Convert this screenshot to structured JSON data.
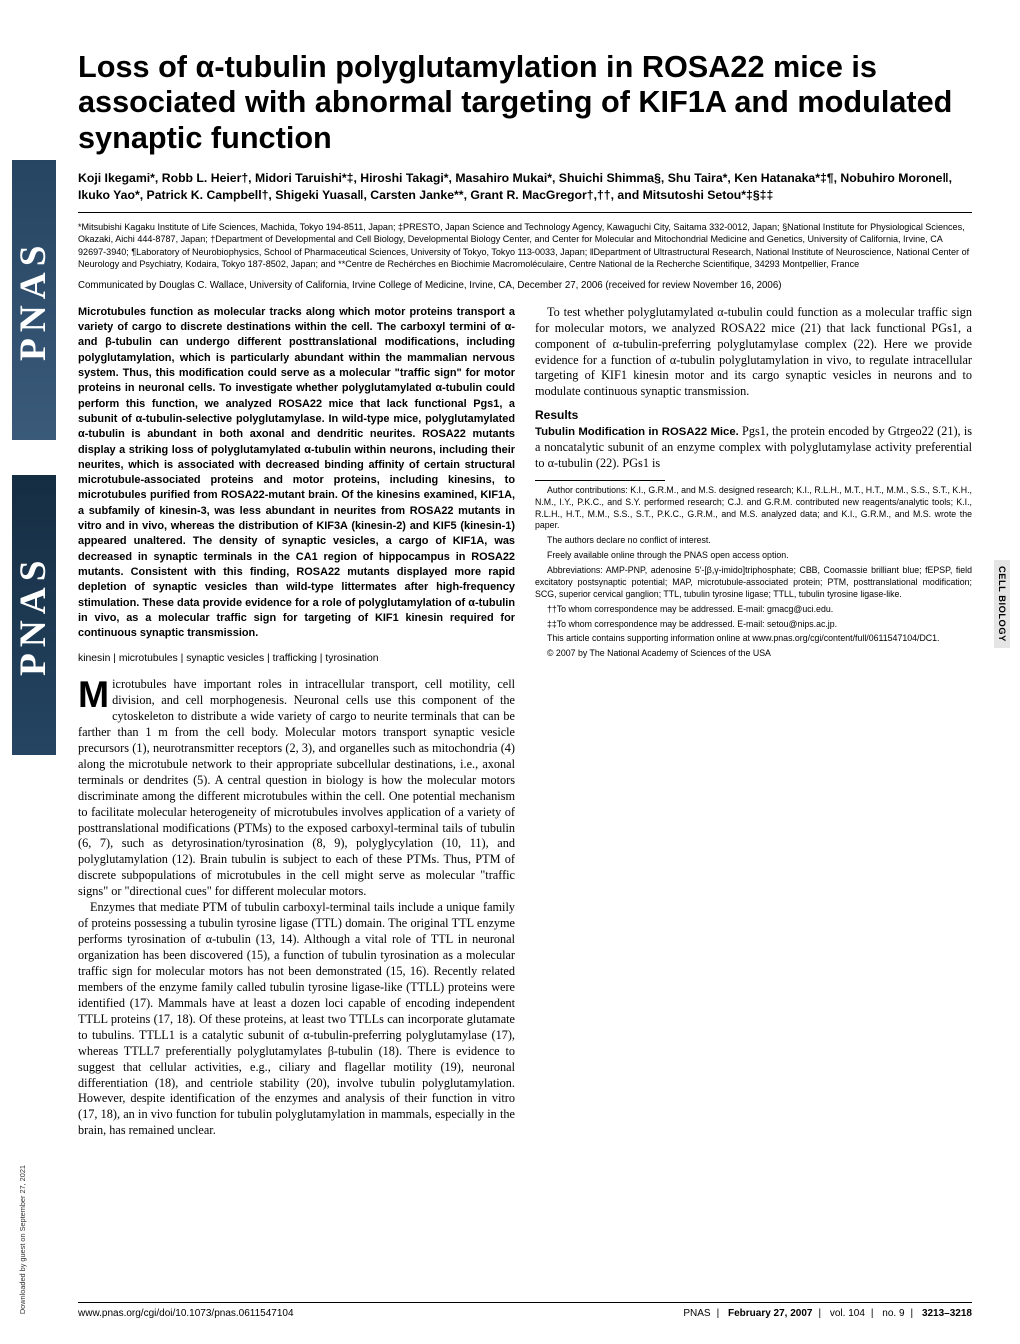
{
  "brand": {
    "text": "PNAS"
  },
  "side_category": "CELL BIOLOGY",
  "download_note": "Downloaded by guest on September 27, 2021",
  "title": "Loss of α-tubulin polyglutamylation in ROSA22 mice is associated with abnormal targeting of KIF1A and modulated synaptic function",
  "authors": "Koji Ikegami*, Robb L. Heier†, Midori Taruishi*‡, Hiroshi Takagi*, Masahiro Mukai*, Shuichi Shimma§, Shu Taira*, Ken Hatanaka*‡¶, Nobuhiro Morone‖, Ikuko Yao*, Patrick K. Campbell†, Shigeki Yuasa‖, Carsten Janke**, Grant R. MacGregor†,††, and Mitsutoshi Setou*‡§‡‡",
  "affiliations": "*Mitsubishi Kagaku Institute of Life Sciences, Machida, Tokyo 194-8511, Japan; ‡PRESTO, Japan Science and Technology Agency, Kawaguchi City, Saitama 332-0012, Japan; §National Institute for Physiological Sciences, Okazaki, Aichi 444-8787, Japan; †Department of Developmental and Cell Biology, Developmental Biology Center, and Center for Molecular and Mitochondrial Medicine and Genetics, University of California, Irvine, CA 92697-3940; ¶Laboratory of Neurobiophysics, School of Pharmaceutical Sciences, University of Tokyo, Tokyo 113-0033, Japan; ‖Department of Ultrastructural Research, National Institute of Neuroscience, National Center of Neurology and Psychiatry, Kodaira, Tokyo 187-8502, Japan; and **Centre de Rechérches en Biochimie Macromoléculaire, Centre National de la Recherche Scientifique, 34293 Montpellier, France",
  "communicated": "Communicated by Douglas C. Wallace, University of California, Irvine College of Medicine, Irvine, CA, December 27, 2006 (received for review November 16, 2006)",
  "abstract": "Microtubules function as molecular tracks along which motor proteins transport a variety of cargo to discrete destinations within the cell. The carboxyl termini of α- and β-tubulin can undergo different posttranslational modifications, including polyglutamylation, which is particularly abundant within the mammalian nervous system. Thus, this modification could serve as a molecular \"traffic sign\" for motor proteins in neuronal cells. To investigate whether polyglutamylated α-tubulin could perform this function, we analyzed ROSA22 mice that lack functional Pgs1, a subunit of α-tubulin-selective polyglutamylase. In wild-type mice, polyglutamylated α-tubulin is abundant in both axonal and dendritic neurites. ROSA22 mutants display a striking loss of polyglutamylated α-tubulin within neurons, including their neurites, which is associated with decreased binding affinity of certain structural microtubule-associated proteins and motor proteins, including kinesins, to microtubules purified from ROSA22-mutant brain. Of the kinesins examined, KIF1A, a subfamily of kinesin-3, was less abundant in neurites from ROSA22 mutants in vitro and in vivo, whereas the distribution of KIF3A (kinesin-2) and KIF5 (kinesin-1) appeared unaltered. The density of synaptic vesicles, a cargo of KIF1A, was decreased in synaptic terminals in the CA1 region of hippocampus in ROSA22 mutants. Consistent with this finding, ROSA22 mutants displayed more rapid depletion of synaptic vesicles than wild-type littermates after high-frequency stimulation. These data provide evidence for a role of polyglutamylation of α-tubulin in vivo, as a molecular traffic sign for targeting of KIF1 kinesin required for continuous synaptic transmission.",
  "keywords": "kinesin | microtubules | synaptic vesicles | trafficking | tyrosination",
  "body": {
    "p1_dropcap": "M",
    "p1": "icrotubules have important roles in intracellular transport, cell motility, cell division, and cell morphogenesis. Neuronal cells use this component of the cytoskeleton to distribute a wide variety of cargo to neurite terminals that can be farther than 1 m from the cell body. Molecular motors transport synaptic vesicle precursors (1), neurotransmitter receptors (2, 3), and organelles such as mitochondria (4) along the microtubule network to their appropriate subcellular destinations, i.e., axonal terminals or dendrites (5). A central question in biology is how the molecular motors discriminate among the different microtubules within the cell. One potential mechanism to facilitate molecular heterogeneity of microtubules involves application of a variety of posttranslational modifications (PTMs) to the exposed carboxyl-terminal tails of tubulin (6, 7), such as detyrosination/tyrosination (8, 9), polyglycylation (10, 11), and polyglutamylation (12). Brain tubulin is subject to each of these PTMs. Thus, PTM of discrete subpopulations of microtubules in the cell might serve as molecular \"traffic signs\" or \"directional cues\" for different molecular motors.",
    "p2": "Enzymes that mediate PTM of tubulin carboxyl-terminal tails include a unique family of proteins possessing a tubulin tyrosine ligase (TTL) domain. The original TTL enzyme performs tyrosination of α-tubulin (13, 14). Although a vital role of TTL in neuronal organization has been discovered (15), a function of tubulin tyrosination as a molecular traffic sign for molecular motors has not been demonstrated (15, 16). Recently related members of the enzyme family called tubulin tyrosine ligase-like (TTLL) proteins were identified (17). Mammals have at least a dozen loci capable of encoding independent TTLL proteins (17, 18). Of these proteins, at least two TTLLs can incorporate glutamate to tubulins. TTLL1 is a catalytic subunit of α-tubulin-preferring polyglutamylase (17), whereas TTLL7 preferentially polyglutamylates β-tubulin (18). There is evidence to suggest that cellular activities, e.g., ciliary and flagellar motility (19), neuronal differentiation (18), and centriole stability (20), involve tubulin polyglutamylation. However, despite identification of the enzymes and analysis of their function in vitro (17, 18), an in vivo function for tubulin polyglutamylation in mammals, especially in the brain, has remained unclear.",
    "p3": "To test whether polyglutamylated α-tubulin could function as a molecular traffic sign for molecular motors, we analyzed ROSA22 mice (21) that lack functional PGs1, a component of α-tubulin-preferring polyglutamylase complex (22). Here we provide evidence for a function of α-tubulin polyglutamylation in vivo, to regulate intracellular targeting of KIF1 kinesin motor and its cargo synaptic vesicles in neurons and to modulate continuous synaptic transmission."
  },
  "results_head": "Results",
  "results_sub": "Tubulin Modification in ROSA22 Mice.",
  "results_text": " Pgs1, the protein encoded by Gtrgeo22 (21), is a noncatalytic subunit of an enzyme complex with polyglutamylase activity preferential to α-tubulin (22). PGs1 is",
  "footnotes": {
    "contrib": "Author contributions: K.I., G.R.M., and M.S. designed research; K.I., R.L.H., M.T., H.T., M.M., S.S., S.T., K.H., N.M., I.Y., P.K.C., and S.Y. performed research; C.J. and G.R.M. contributed new reagents/analytic tools; K.I., R.L.H., H.T., M.M., S.S., S.T., P.K.C., G.R.M., and M.S. analyzed data; and K.I., G.R.M., and M.S. wrote the paper.",
    "conflict": "The authors declare no conflict of interest.",
    "access": "Freely available online through the PNAS open access option.",
    "abbrev": "Abbreviations: AMP-PNP, adenosine 5′-[β,γ-imido]triphosphate; CBB, Coomassie brilliant blue; fEPSP, field excitatory postsynaptic potential; MAP, microtubule-associated protein; PTM, posttranslational modification; SCG, superior cervical ganglion; TTL, tubulin tyrosine ligase; TTLL, tubulin tyrosine ligase-like.",
    "corr1": "††To whom correspondence may be addressed. E-mail: gmacg@uci.edu.",
    "corr2": "‡‡To whom correspondence may be addressed. E-mail: setou@nips.ac.jp.",
    "si": "This article contains supporting information online at www.pnas.org/cgi/content/full/0611547104/DC1.",
    "copyright": "© 2007 by The National Academy of Sciences of the USA"
  },
  "footer": {
    "doi": "www.pnas.org/cgi/doi/10.1073/pnas.0611547104",
    "journal": "PNAS",
    "date": "February 27, 2007",
    "vol": "vol. 104",
    "no": "no. 9",
    "pages": "3213–3218"
  }
}
